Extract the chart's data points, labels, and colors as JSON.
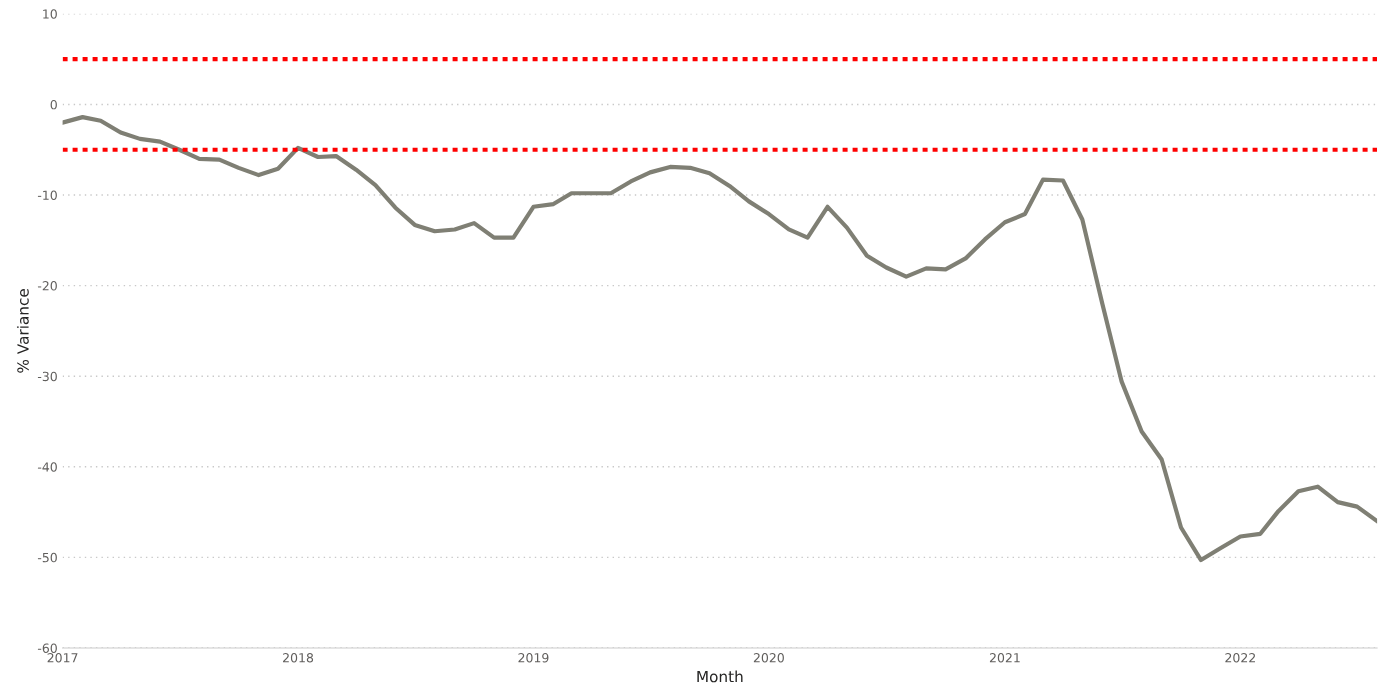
{
  "chart_data": {
    "type": "line",
    "xlabel": "Month",
    "ylabel": "% Variance",
    "x": [
      "2017-01",
      "2017-02",
      "2017-03",
      "2017-04",
      "2017-05",
      "2017-06",
      "2017-07",
      "2017-08",
      "2017-09",
      "2017-10",
      "2017-11",
      "2017-12",
      "2018-01",
      "2018-02",
      "2018-03",
      "2018-04",
      "2018-05",
      "2018-06",
      "2018-07",
      "2018-08",
      "2018-09",
      "2018-10",
      "2018-11",
      "2018-12",
      "2019-01",
      "2019-02",
      "2019-03",
      "2019-04",
      "2019-05",
      "2019-06",
      "2019-07",
      "2019-08",
      "2019-09",
      "2019-10",
      "2019-11",
      "2019-12",
      "2020-01",
      "2020-02",
      "2020-03",
      "2020-04",
      "2020-05",
      "2020-06",
      "2020-07",
      "2020-08",
      "2020-09",
      "2020-10",
      "2020-11",
      "2020-12",
      "2021-01",
      "2021-02",
      "2021-03",
      "2021-04",
      "2021-05",
      "2021-06",
      "2021-07",
      "2021-08",
      "2021-09",
      "2021-10",
      "2021-11",
      "2021-12",
      "2022-01",
      "2022-02",
      "2022-03",
      "2022-04",
      "2022-05",
      "2022-06",
      "2022-07",
      "2022-08"
    ],
    "series": [
      {
        "color": "#7f7f74",
        "values": [
          -2.0,
          -1.4,
          -1.8,
          -3.1,
          -3.8,
          -4.1,
          -5.0,
          -6.0,
          -6.1,
          -7.0,
          -7.8,
          -7.1,
          -4.8,
          -5.8,
          -5.7,
          -7.2,
          -8.9,
          -11.4,
          -13.3,
          -14.0,
          -13.8,
          -13.1,
          -14.7,
          -14.7,
          -11.3,
          -11.0,
          -9.8,
          -9.8,
          -9.8,
          -8.5,
          -7.5,
          -6.9,
          -7.0,
          -7.6,
          -9.0,
          -10.7,
          -12.1,
          -13.8,
          -14.7,
          -11.3,
          -13.6,
          -16.7,
          -18.0,
          -19.0,
          -18.1,
          -18.2,
          -17.0,
          -14.9,
          -13.0,
          -12.1,
          -8.3,
          -8.4,
          -12.7,
          -22.0,
          -30.6,
          -36.1,
          -39.2,
          -46.7,
          -50.3,
          -49.0,
          -47.7,
          -47.4,
          -44.9,
          -42.7,
          -42.2,
          -43.9,
          -44.4,
          -46.0
        ]
      }
    ],
    "xlim": [
      "2017-01",
      "2022-08"
    ],
    "xticks": [
      "2017",
      "2018",
      "2019",
      "2020",
      "2021",
      "2022"
    ],
    "ylim": [
      -60,
      10
    ],
    "yticks": [
      -60,
      -50,
      -40,
      -30,
      -20,
      -10,
      0,
      10
    ],
    "ref_lines": [
      {
        "axis": "y",
        "value": 5,
        "color": "#ff0000",
        "line_style": "dotted"
      },
      {
        "axis": "y",
        "value": -5,
        "color": "#ff0000",
        "line_style": "dotted"
      }
    ],
    "grid": "y",
    "legend": false,
    "marker": "none",
    "line_style": "solid"
  }
}
